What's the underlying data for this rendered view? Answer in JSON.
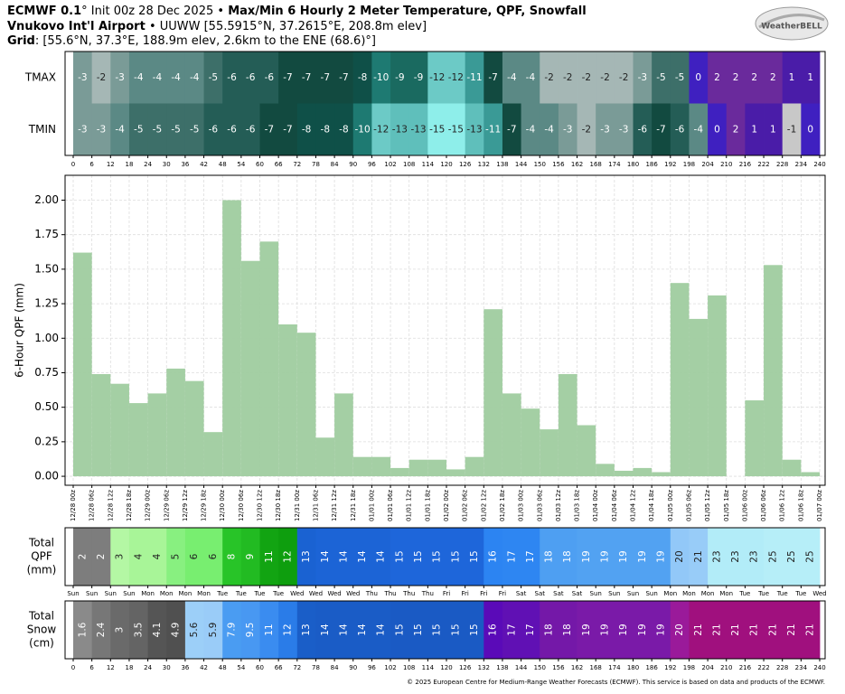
{
  "header": {
    "model": "ECMWF 0.1",
    "init": "° Init 00z 28 Dec 2025 •",
    "product": "Max/Min 6 Hourly 2 Meter Temperature, QPF, Snowfall",
    "location": "Vnukovo Int'l Airport",
    "station": "• UUWW [55.5915°N, 37.2615°E, 208.8m elev]",
    "grid_label": "Grid",
    "grid": ": [55.6°N, 37.3°E, 188.9m elev, 2.6km to the ENE (68.6)°]",
    "logo": "WeatherBELL"
  },
  "footer": "© 2025 European Centre for Medium-Range Weather Forecasts (ECMWF). This service is based on data and products of the ECMWF.",
  "chart_data": [
    {
      "type": "heatmap",
      "series": [
        {
          "name": "TMAX",
          "values": [
            -3,
            -2,
            -3,
            -4,
            -4,
            -4,
            -4,
            -5,
            -6,
            -6,
            -6,
            -7,
            -7,
            -7,
            -7,
            -8,
            -10,
            -9,
            -9,
            -12,
            -12,
            -11,
            -7,
            -4,
            -4,
            -2,
            -2,
            -2,
            -2,
            -2,
            -3,
            -5,
            -5,
            0,
            2,
            2,
            2,
            2,
            1,
            1
          ]
        },
        {
          "name": "TMIN",
          "values": [
            -3,
            -3,
            -4,
            -5,
            -5,
            -5,
            -5,
            -6,
            -6,
            -6,
            -7,
            -7,
            -8,
            -8,
            -8,
            -10,
            -12,
            -13,
            -13,
            -15,
            -15,
            -13,
            -11,
            -7,
            -4,
            -4,
            -3,
            -2,
            -3,
            -3,
            -6,
            -7,
            -6,
            -4,
            0,
            2,
            1,
            1,
            -1,
            0
          ]
        }
      ],
      "xlim": [
        0,
        240
      ],
      "xticks": [
        0,
        6,
        12,
        18,
        24,
        30,
        36,
        42,
        48,
        54,
        60,
        66,
        72,
        78,
        84,
        90,
        96,
        102,
        108,
        114,
        120,
        126,
        132,
        138,
        144,
        150,
        156,
        162,
        168,
        174,
        180,
        186,
        192,
        198,
        204,
        210,
        216,
        222,
        228,
        234,
        240
      ],
      "colorscale": [
        {
          "value": -15,
          "color": "#8eeeea"
        },
        {
          "value": -13,
          "color": "#5fbfbb"
        },
        {
          "value": -12,
          "color": "#6ccac6"
        },
        {
          "value": -11,
          "color": "#3a9a96"
        },
        {
          "value": -10,
          "color": "#1e7a72"
        },
        {
          "value": -9,
          "color": "#1a6a60"
        },
        {
          "value": -8,
          "color": "#0f5048"
        },
        {
          "value": -7,
          "color": "#124a40"
        },
        {
          "value": -6,
          "color": "#245d56"
        },
        {
          "value": -5,
          "color": "#3d6f69"
        },
        {
          "value": -4,
          "color": "#5b8985"
        },
        {
          "value": -3,
          "color": "#7a9b97"
        },
        {
          "value": -2,
          "color": "#a5b7b5"
        },
        {
          "value": -1,
          "color": "#c8c8c8"
        },
        {
          "value": 0,
          "color": "#3f20c0"
        },
        {
          "value": 1,
          "color": "#4a1ca8"
        },
        {
          "value": 2,
          "color": "#6a2a9c"
        }
      ]
    },
    {
      "type": "histogram",
      "ylabel": "6-Hour QPF (mm)",
      "bins": [
        "12/28 00z",
        "12/28 06z",
        "12/28 12z",
        "12/28 18z",
        "12/29 00z",
        "12/29 06z",
        "12/29 12z",
        "12/29 18z",
        "12/30 00z",
        "12/30 06z",
        "12/30 12z",
        "12/30 18z",
        "12/31 00z",
        "12/31 06z",
        "12/31 12z",
        "12/31 18z",
        "01/01 00z",
        "01/01 06z",
        "01/01 12z",
        "01/01 18z",
        "01/02 00z",
        "01/02 06z",
        "01/02 12z",
        "01/02 18z",
        "01/03 00z",
        "01/03 06z",
        "01/03 12z",
        "01/03 18z",
        "01/04 00z",
        "01/04 06z",
        "01/04 12z",
        "01/04 18z",
        "01/05 00z",
        "01/05 06z",
        "01/05 12z",
        "01/05 18z",
        "01/06 00z",
        "01/06 06z",
        "01/06 12z",
        "01/06 18z",
        "01/07 00z"
      ],
      "values": [
        1.62,
        0.74,
        0.67,
        0.53,
        0.6,
        0.78,
        0.69,
        0.32,
        2.0,
        1.56,
        1.7,
        1.1,
        1.04,
        0.28,
        0.6,
        0.14,
        0.14,
        0.06,
        0.12,
        0.12,
        0.05,
        0.14,
        1.21,
        0.6,
        0.49,
        0.34,
        0.74,
        0.37,
        0.09,
        0.04,
        0.06,
        0.03,
        1.4,
        1.14,
        1.31,
        0,
        0.55,
        1.53,
        0.12,
        0.03
      ],
      "color": "#9fcc9f",
      "ylim": [
        -0.065,
        2.18
      ],
      "yticks": [
        {
          "value": 0,
          "label": "0.00"
        },
        {
          "value": 0.25,
          "label": "0.25"
        },
        {
          "value": 0.5,
          "label": "0.50"
        },
        {
          "value": 0.75,
          "label": "0.75"
        },
        {
          "value": 1,
          "label": "1.00"
        },
        {
          "value": 1.25,
          "label": "1.25"
        },
        {
          "value": 1.5,
          "label": "1.50"
        },
        {
          "value": 1.75,
          "label": "1.75"
        },
        {
          "value": 2,
          "label": "2.00"
        }
      ],
      "grid": true
    },
    {
      "type": "strip",
      "label": [
        "Total",
        "QPF",
        "(mm)"
      ],
      "values": [
        2,
        2,
        3,
        4,
        4,
        5,
        6,
        6,
        8,
        9,
        11,
        12,
        13,
        14,
        14,
        14,
        14,
        15,
        15,
        15,
        15,
        15,
        16,
        17,
        17,
        18,
        18,
        19,
        19,
        19,
        19,
        19,
        20,
        21,
        23,
        23,
        23,
        25,
        25,
        25
      ],
      "xtick_labels": [
        "Sun",
        "Sun",
        "Sun",
        "Sun",
        "Mon",
        "Mon",
        "Mon",
        "Mon",
        "Tue",
        "Tue",
        "Tue",
        "Tue",
        "Wed",
        "Wed",
        "Wed",
        "Wed",
        "Thu",
        "Thu",
        "Thu",
        "Thu",
        "Fri",
        "Fri",
        "Fri",
        "Fri",
        "Sat",
        "Sat",
        "Sat",
        "Sat",
        "Sun",
        "Sun",
        "Sun",
        "Sun",
        "Mon",
        "Mon",
        "Mon",
        "Mon",
        "Tue",
        "Tue",
        "Tue",
        "Tue",
        "Wed"
      ],
      "colorscale": [
        {
          "value": 2,
          "color": "#7d7d7d"
        },
        {
          "value": 3,
          "color": "#b4f7a4"
        },
        {
          "value": 4,
          "color": "#a8f598"
        },
        {
          "value": 5,
          "color": "#88f080"
        },
        {
          "value": 6,
          "color": "#78ee70"
        },
        {
          "value": 8,
          "color": "#28c428"
        },
        {
          "value": 9,
          "color": "#22bb22"
        },
        {
          "value": 11,
          "color": "#12a412"
        },
        {
          "value": 12,
          "color": "#0e9e0e"
        },
        {
          "value": 13,
          "color": "#1a62d2"
        },
        {
          "value": 14,
          "color": "#1c64d6"
        },
        {
          "value": 15,
          "color": "#1e66da"
        },
        {
          "value": 16,
          "color": "#2c84f2"
        },
        {
          "value": 17,
          "color": "#2e86f2"
        },
        {
          "value": 18,
          "color": "#4e9ff2"
        },
        {
          "value": 19,
          "color": "#52a2f2"
        },
        {
          "value": 20,
          "color": "#92c8f8"
        },
        {
          "value": 21,
          "color": "#98ccf8"
        },
        {
          "value": 23,
          "color": "#b2ecf8"
        },
        {
          "value": 25,
          "color": "#b6eef8"
        }
      ]
    },
    {
      "type": "strip",
      "label": [
        "Total",
        "Snow",
        "(cm)"
      ],
      "values": [
        1.6,
        2.4,
        3,
        3.5,
        4.1,
        4.9,
        5.6,
        5.9,
        7.9,
        9.5,
        11,
        12,
        13,
        14,
        14,
        14,
        14,
        15,
        15,
        15,
        15,
        15,
        16,
        17,
        17,
        18,
        18,
        19,
        19,
        19,
        19,
        19,
        20,
        21,
        21,
        21,
        21,
        21,
        21,
        21
      ],
      "xlim": [
        0,
        240
      ],
      "xticks": [
        0,
        6,
        12,
        18,
        24,
        30,
        36,
        42,
        48,
        54,
        60,
        66,
        72,
        78,
        84,
        90,
        96,
        102,
        108,
        114,
        120,
        126,
        132,
        138,
        144,
        150,
        156,
        162,
        168,
        174,
        180,
        186,
        192,
        198,
        204,
        210,
        216,
        222,
        228,
        234,
        240
      ],
      "colorscale": [
        {
          "value": 1.6,
          "color": "#8a8a8a"
        },
        {
          "value": 2.4,
          "color": "#777777"
        },
        {
          "value": 3,
          "color": "#6a6a6a"
        },
        {
          "value": 3.5,
          "color": "#646464"
        },
        {
          "value": 4.1,
          "color": "#555555"
        },
        {
          "value": 4.9,
          "color": "#505050"
        },
        {
          "value": 5.6,
          "color": "#9ccff8"
        },
        {
          "value": 5.9,
          "color": "#9accf8"
        },
        {
          "value": 7.9,
          "color": "#4a9cf2"
        },
        {
          "value": 9.5,
          "color": "#4898f2"
        },
        {
          "value": 11,
          "color": "#3a8cf0"
        },
        {
          "value": 12,
          "color": "#2a7ce8"
        },
        {
          "value": 13,
          "color": "#1a5ec8"
        },
        {
          "value": 14,
          "color": "#1a5cc6"
        },
        {
          "value": 15,
          "color": "#1a5ac4"
        },
        {
          "value": 16,
          "color": "#5a0ab8"
        },
        {
          "value": 17,
          "color": "#6010b4"
        },
        {
          "value": 18,
          "color": "#7418a8"
        },
        {
          "value": 19,
          "color": "#7a1aa8"
        },
        {
          "value": 20,
          "color": "#9a1a9a"
        },
        {
          "value": 21,
          "color": "#a0107e"
        }
      ]
    }
  ]
}
